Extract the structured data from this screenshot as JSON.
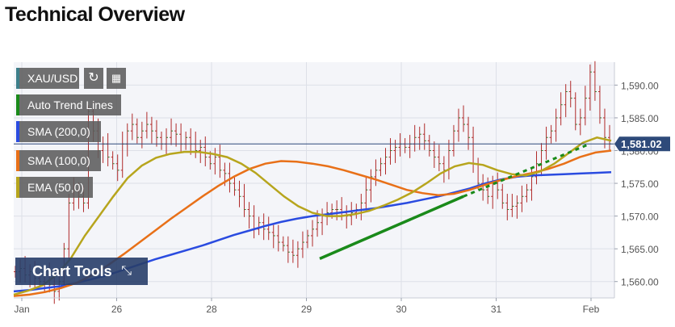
{
  "page": {
    "title": "Technical Overview"
  },
  "toolbar": {
    "symbol": "XAU/USD",
    "refresh_icon": "refresh-icon",
    "calendar_icon": "calendar-icon"
  },
  "legend": [
    {
      "label": "Auto Trend Lines",
      "color": "#1a8a1a"
    },
    {
      "label": "SMA (200,0)",
      "color": "#2a4be0"
    },
    {
      "label": "SMA (100,0)",
      "color": "#e87018"
    },
    {
      "label": "EMA (50,0)",
      "color": "#b7a51d"
    }
  ],
  "chart_tools": {
    "label": "Chart Tools",
    "icon": "expand-icon"
  },
  "price_badge": {
    "value": "1,581.02",
    "color": "#2e4a7a"
  },
  "chart_data": {
    "type": "line",
    "x_ticks": [
      "Jan",
      "26",
      "28",
      "29",
      "30",
      "31",
      "Feb"
    ],
    "y_ticks": [
      "1,590.00",
      "1,585.00",
      "1,580.00",
      "1,575.00",
      "1,570.00",
      "1,565.00",
      "1,560.00"
    ],
    "ylim": [
      1557.5,
      1593.5
    ],
    "grid": true,
    "last_price": 1581.02,
    "price_close": [
      1561.5,
      1562.0,
      1561.0,
      1561.5,
      1560.5,
      1560.0,
      1561.0,
      1559.5,
      1558.5,
      1560.0,
      1565.0,
      1572.0,
      1574.0,
      1573.0,
      1572.0,
      1586.0,
      1583.0,
      1580.0,
      1581.0,
      1579.0,
      1578.0,
      1577.0,
      1581.0,
      1583.0,
      1584.0,
      1582.0,
      1583.0,
      1584.0,
      1583.0,
      1582.0,
      1581.0,
      1582.0,
      1583.0,
      1582.5,
      1581.0,
      1582.0,
      1581.0,
      1580.0,
      1580.5,
      1579.0,
      1578.0,
      1579.0,
      1577.0,
      1576.5,
      1575.0,
      1574.0,
      1573.0,
      1571.0,
      1570.0,
      1568.0,
      1569.0,
      1568.0,
      1567.5,
      1567.0,
      1566.0,
      1565.5,
      1564.5,
      1564.0,
      1565.0,
      1566.0,
      1567.0,
      1568.0,
      1569.0,
      1570.0,
      1570.5,
      1571.0,
      1571.0,
      1570.5,
      1570.0,
      1570.5,
      1571.0,
      1572.0,
      1574.0,
      1576.0,
      1577.0,
      1578.0,
      1579.0,
      1580.0,
      1580.5,
      1581.0,
      1580.5,
      1581.0,
      1582.0,
      1582.5,
      1581.5,
      1580.0,
      1579.0,
      1578.0,
      1577.0,
      1580.0,
      1583.0,
      1585.0,
      1584.0,
      1582.0,
      1578.0,
      1575.0,
      1574.0,
      1573.0,
      1575.0,
      1574.0,
      1572.0,
      1571.0,
      1571.5,
      1572.0,
      1573.0,
      1574.0,
      1576.0,
      1578.0,
      1580.0,
      1582.0,
      1583.0,
      1585.0,
      1587.0,
      1589.0,
      1588.0,
      1584.0,
      1585.0,
      1588.0,
      1592.0,
      1589.0,
      1585.0,
      1582.0,
      1581.02
    ],
    "series": [
      {
        "name": "SMA (200,0)",
        "color": "#2a4be0",
        "values": [
          1558.5,
          1558.7,
          1559.0,
          1559.3,
          1559.8,
          1560.4,
          1561.0,
          1561.8,
          1562.6,
          1563.4,
          1564.1,
          1564.8,
          1565.5,
          1566.3,
          1567.1,
          1567.8,
          1568.5,
          1569.1,
          1569.6,
          1570.0,
          1570.3,
          1570.6,
          1570.9,
          1571.2,
          1571.6,
          1572.0,
          1572.5,
          1573.0,
          1573.6,
          1574.2,
          1575.0,
          1575.6,
          1576.0,
          1576.2,
          1576.3,
          1576.4,
          1576.5,
          1576.6,
          1576.7
        ]
      },
      {
        "name": "SMA (100,0)",
        "color": "#e87018",
        "values": [
          1557.8,
          1558.0,
          1558.4,
          1559.0,
          1559.8,
          1561.0,
          1562.5,
          1564.2,
          1566.0,
          1567.8,
          1569.6,
          1571.3,
          1573.0,
          1574.6,
          1576.0,
          1577.2,
          1578.0,
          1578.4,
          1578.3,
          1578.0,
          1577.6,
          1577.0,
          1576.3,
          1575.6,
          1574.8,
          1574.0,
          1573.5,
          1573.2,
          1573.4,
          1574.0,
          1574.8,
          1575.5,
          1576.1,
          1576.6,
          1577.2,
          1578.0,
          1579.0,
          1579.7,
          1580.0
        ]
      },
      {
        "name": "EMA (50,0)",
        "color": "#b7a51d",
        "values": [
          1558.0,
          1558.6,
          1559.4,
          1561.0,
          1563.5,
          1567.0,
          1570.0,
          1573.0,
          1575.8,
          1577.7,
          1578.9,
          1579.5,
          1579.8,
          1579.8,
          1579.5,
          1579.0,
          1578.0,
          1576.6,
          1574.8,
          1573.0,
          1571.5,
          1570.5,
          1570.0,
          1570.0,
          1570.3,
          1570.8,
          1571.6,
          1572.5,
          1573.6,
          1575.0,
          1576.5,
          1577.6,
          1578.1,
          1577.8,
          1577.0,
          1576.4,
          1576.2,
          1576.8,
          1578.0,
          1579.6,
          1581.2,
          1582.0,
          1581.5
        ]
      }
    ],
    "trend_line_solid": [
      [
        1563.5,
        1573.0
      ]
    ],
    "trend_line_dashed": [
      [
        1573.0,
        1581.0
      ]
    ]
  }
}
